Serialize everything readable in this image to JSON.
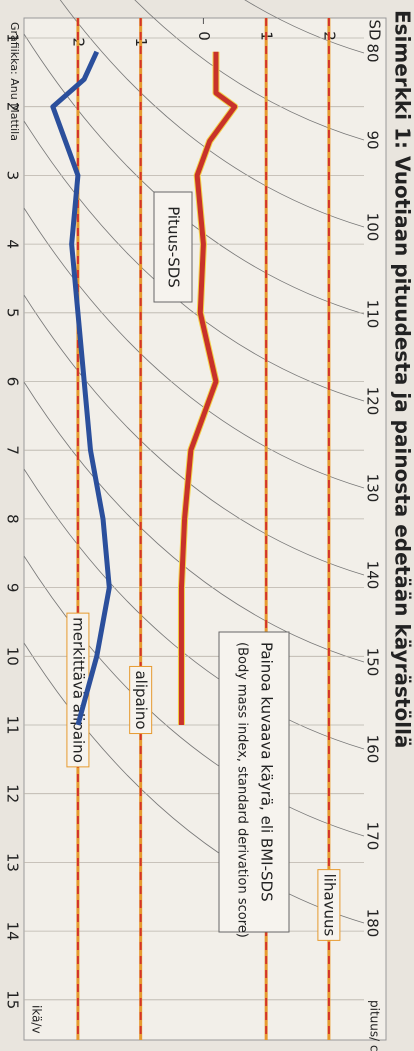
{
  "chart_data": {
    "type": "line",
    "title": "Esimerkki 1: Vuotiaan pituudesta ja painosta edetään käyrästöllä",
    "credit": "Grafiikka: Anu Mattila",
    "x_label": "ikä/v",
    "y_label": "SD",
    "height_label": "pituus/ cm",
    "xlim": [
      0.6,
      15.8
    ],
    "xticks": [
      1,
      2,
      3,
      4,
      5,
      6,
      7,
      8,
      9,
      10,
      11,
      12,
      13,
      14,
      15
    ],
    "ylim": [
      -2.7,
      2.4
    ],
    "yticks": [
      {
        "value": -2,
        "label": "−2"
      },
      {
        "value": -1,
        "label": "−1"
      },
      0,
      1,
      2
    ],
    "height_labels": [
      80,
      90,
      100,
      110,
      120,
      130,
      140,
      150,
      160,
      170,
      180
    ],
    "series": [
      {
        "name": "Painoa kuvaava käyrä, eli BMI-SDS",
        "color": "#c8322a",
        "x": [
          1.2,
          1.8,
          2,
          2.5,
          3,
          4,
          5,
          6,
          7,
          8,
          9,
          11
        ],
        "values": [
          0.2,
          0.2,
          0.5,
          0.1,
          -0.1,
          0.0,
          -0.05,
          0.2,
          -0.2,
          -0.3,
          -0.35,
          -0.35
        ]
      },
      {
        "name": "Pituus-SDS",
        "color": "#2b4f9c",
        "x": [
          1.2,
          1.6,
          2,
          3,
          4,
          5,
          6,
          7,
          8,
          9,
          10,
          11
        ],
        "values": [
          -1.7,
          -1.9,
          -2.4,
          -2.0,
          -2.1,
          -2.0,
          -1.9,
          -1.8,
          -1.6,
          -1.5,
          -1.7,
          -2.0
        ]
      }
    ],
    "reference_lines": [
      {
        "label": "lihavuus",
        "value": 2
      },
      {
        "label": "ylipaino",
        "value": 1
      },
      {
        "label": "alipaino",
        "value": -1
      },
      {
        "label": "merkittävä alipaino",
        "value": -2
      }
    ],
    "annotations": [
      "Pituus-SDS",
      "Painoa kuvaava käyrä, eli BMI-SDS",
      "(Body mass index, standard derivation score)"
    ]
  }
}
